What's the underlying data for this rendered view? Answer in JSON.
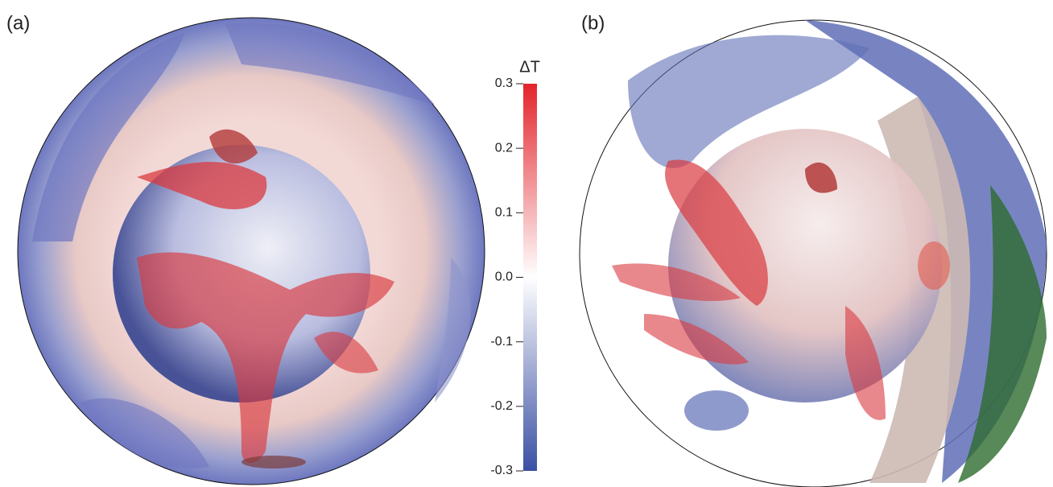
{
  "panels": [
    {
      "label": "(a)"
    },
    {
      "label": "(b)"
    }
  ],
  "colorbar": {
    "title": "ΔT",
    "lim": [
      -0.3,
      0.3
    ],
    "ticks": [
      0.3,
      0.2,
      0.1,
      {
        "value": 0,
        "label": "0.0"
      },
      -0.1,
      -0.2,
      -0.3
    ],
    "colors": [
      "#3a4fa3",
      "#ffffff",
      "#e3242b"
    ]
  }
}
